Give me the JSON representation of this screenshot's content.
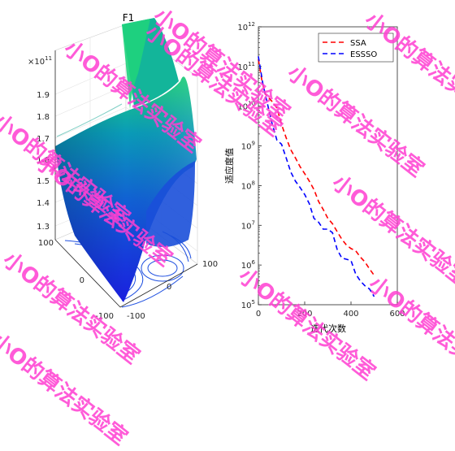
{
  "figure": {
    "left_title": "F1",
    "left_exponent": "×10",
    "left_exponent_power": "11",
    "left_z_ticks": [
      "1.3",
      "1.4",
      "1.5",
      "1.6",
      "1.7",
      "1.8",
      "1.9"
    ],
    "left_x_ticks": [
      "-100",
      "0",
      "100"
    ],
    "left_y_ticks": [
      "-100",
      "0",
      "100"
    ]
  },
  "chart_data": [
    {
      "type": "surface",
      "title": "F1",
      "z_scale": "1e11",
      "z_ticks": [
        1.3,
        1.4,
        1.5,
        1.6,
        1.7,
        1.8,
        1.9
      ],
      "x_ticks": [
        -100,
        0,
        100
      ],
      "y_ticks": [
        -100,
        0,
        100
      ],
      "colors": {
        "low": "#1a22d6",
        "mid": "#0a8fbe",
        "high": "#19c97e"
      }
    },
    {
      "type": "line",
      "xlabel": "迭代次数",
      "ylabel": "适应度值",
      "yscale": "log",
      "xlim": [
        0,
        600
      ],
      "ylim": [
        100000,
        1000000000000
      ],
      "x_ticks": [
        0,
        200,
        400,
        600
      ],
      "y_tick_exponents": [
        5,
        6,
        7,
        8,
        9,
        10,
        11,
        12
      ],
      "legend": "top-right",
      "series": [
        {
          "name": "SSA",
          "color": "#ff0000",
          "dash": "dashed",
          "x": [
            0,
            15,
            30,
            60,
            80,
            100,
            120,
            140,
            160,
            180,
            200,
            220,
            240,
            260,
            280,
            300,
            320,
            340,
            360,
            380,
            400,
            420,
            440,
            460,
            480,
            500
          ],
          "y": [
            150000000000.0,
            45000000000.0,
            20000000000.0,
            13000000000.0,
            9000000000.0,
            3500000000.0,
            1600000000.0,
            800000000.0,
            500000000.0,
            300000000.0,
            200000000.0,
            130000000.0,
            80000000.0,
            40000000.0,
            25000000.0,
            15000000.0,
            11000000.0,
            7000000.0,
            4500000.0,
            3200000.0,
            2600000.0,
            2300000.0,
            1600000.0,
            1200000.0,
            800000.0,
            550000.0
          ]
        },
        {
          "name": "ESSSO",
          "color": "#0000ff",
          "dash": "dashed",
          "x": [
            0,
            20,
            40,
            60,
            80,
            100,
            120,
            140,
            160,
            180,
            200,
            220,
            240,
            260,
            280,
            300,
            320,
            340,
            360,
            380,
            400,
            420,
            440,
            460,
            480,
            500
          ],
          "y": [
            180000000000.0,
            35000000000.0,
            11000000000.0,
            3500000000.0,
            1400000000.0,
            1100000000.0,
            500000000.0,
            220000000.0,
            130000000.0,
            90000000.0,
            60000000.0,
            35000000.0,
            15000000.0,
            12000000.0,
            8000000.0,
            8000000.0,
            6500000.0,
            2500000.0,
            1500000.0,
            1400000.0,
            1300000.0,
            600000.0,
            400000.0,
            300000.0,
            250000.0,
            160000.0
          ]
        }
      ]
    }
  ],
  "watermark": "小O的算法实验室"
}
